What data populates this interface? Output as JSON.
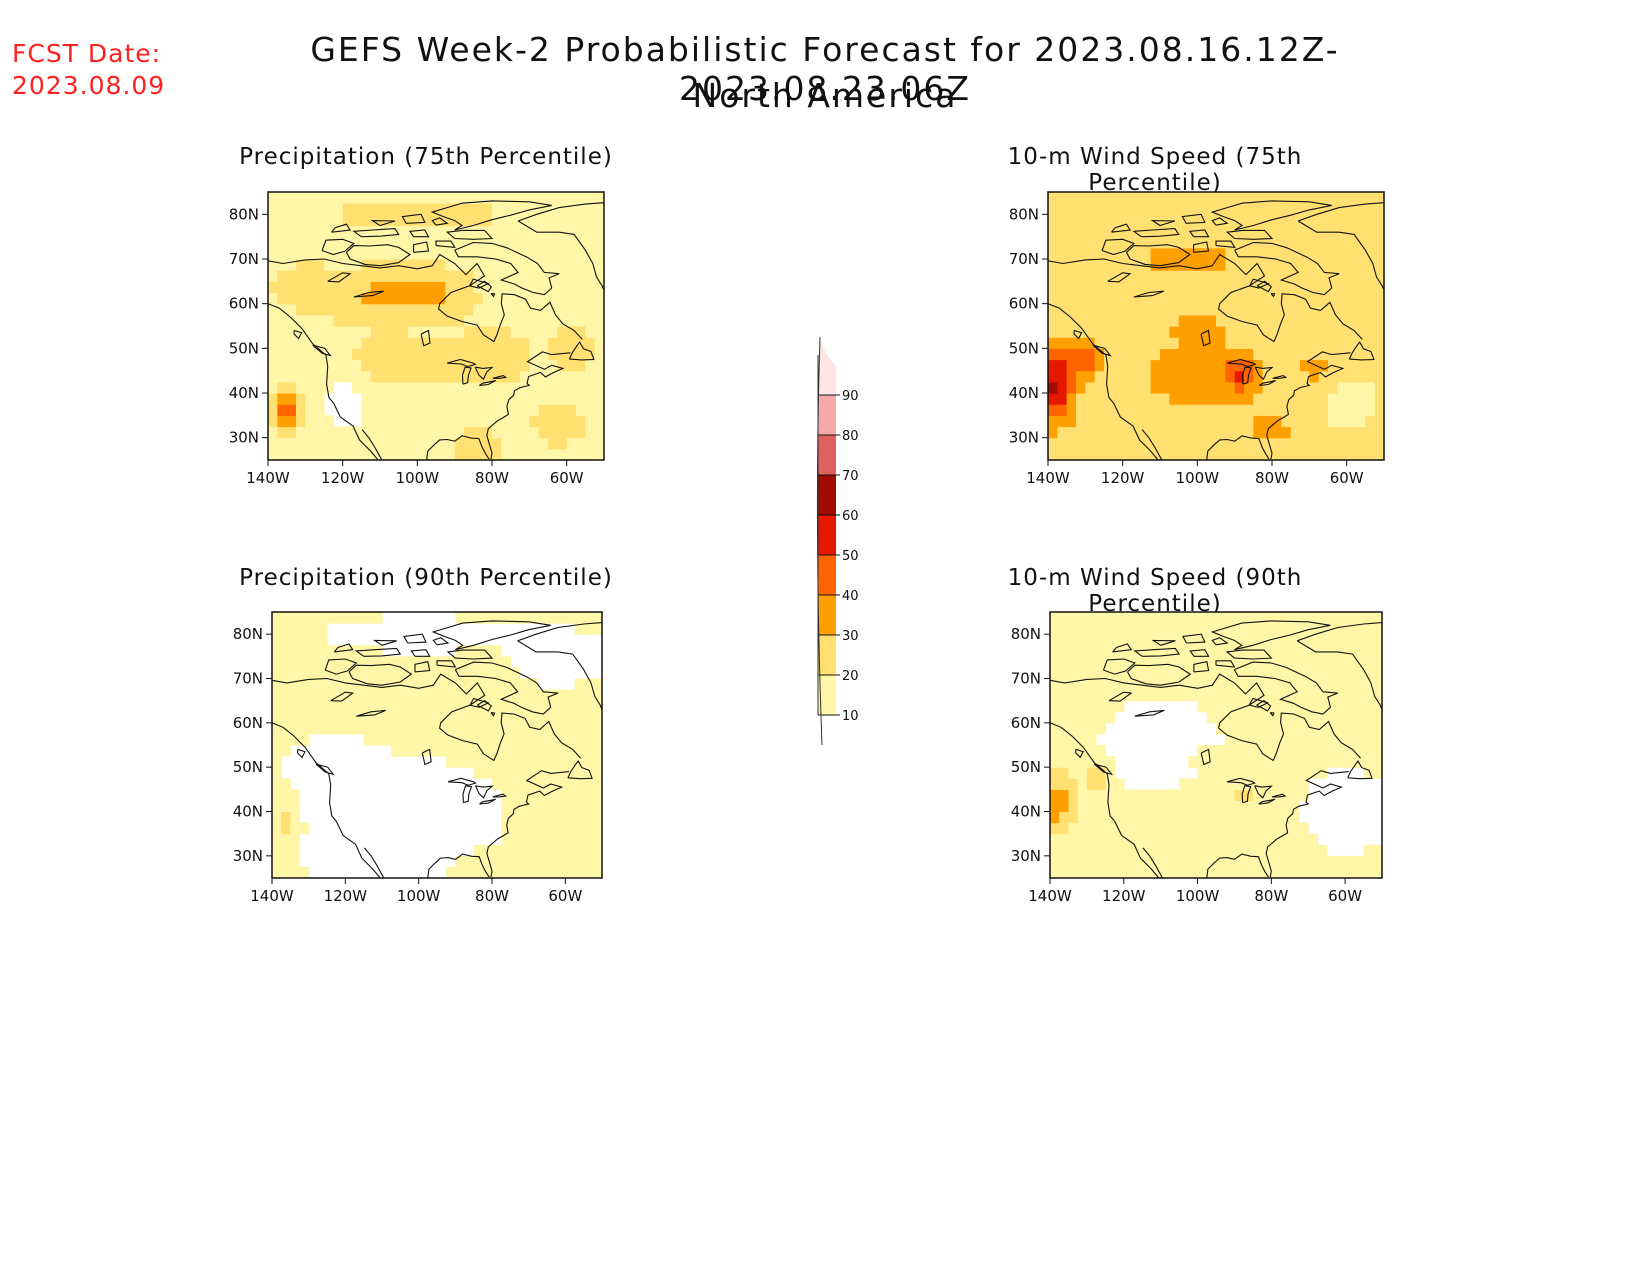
{
  "header": {
    "fcst_date_label": "FCST Date:",
    "fcst_date_value": "2023.08.09",
    "title": "GEFS Week-2 Probabilistic Forecast for 2023.08.16.12Z-2023.08.23.06Z",
    "subtitle": "North America"
  },
  "axes": {
    "lon_ticks": [
      "140W",
      "120W",
      "100W",
      "80W",
      "60W"
    ],
    "lat_ticks": [
      "80N",
      "70N",
      "60N",
      "50N",
      "40N",
      "30N"
    ]
  },
  "panels": [
    {
      "id": "precip75",
      "title": "Precipitation (75th Percentile)",
      "field": "precip",
      "percentile": 75
    },
    {
      "id": "wind75",
      "title": "10-m Wind Speed (75th Percentile)",
      "field": "wind",
      "percentile": 75
    },
    {
      "id": "precip90",
      "title": "Precipitation (90th Percentile)",
      "field": "precip",
      "percentile": 90
    },
    {
      "id": "wind90",
      "title": "10-m Wind Speed (90th Percentile)",
      "field": "wind",
      "percentile": 90
    }
  ],
  "colorbar": {
    "levels": [
      "10",
      "20",
      "30",
      "40",
      "50",
      "60",
      "70",
      "80",
      "90"
    ],
    "colors": [
      "#fff6a8",
      "#ffe070",
      "#ffa000",
      "#ff6400",
      "#e61800",
      "#a00a00",
      "#e06060",
      "#f4a8a8",
      "#ffe6e6"
    ]
  }
}
